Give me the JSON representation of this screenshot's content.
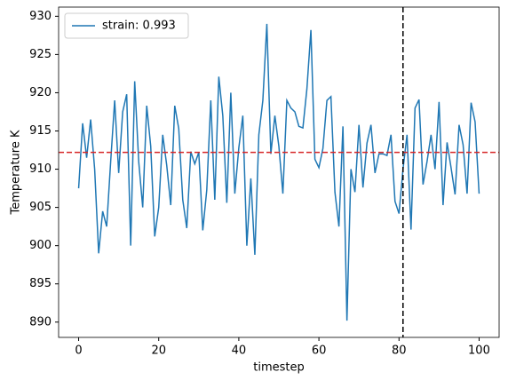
{
  "chart_data": {
    "type": "line",
    "x_label": "timestep",
    "y_label": "Temperature K",
    "x": [
      0,
      1,
      2,
      3,
      4,
      5,
      6,
      7,
      8,
      9,
      10,
      11,
      12,
      13,
      14,
      15,
      16,
      17,
      18,
      19,
      20,
      21,
      22,
      23,
      24,
      25,
      26,
      27,
      28,
      29,
      30,
      31,
      32,
      33,
      34,
      35,
      36,
      37,
      38,
      39,
      40,
      41,
      42,
      43,
      44,
      45,
      46,
      47,
      48,
      49,
      50,
      51,
      52,
      53,
      54,
      55,
      56,
      57,
      58,
      59,
      60,
      61,
      62,
      63,
      64,
      65,
      66,
      67,
      68,
      69,
      70,
      71,
      72,
      73,
      74,
      75,
      76,
      77,
      78,
      79,
      80,
      81,
      82,
      83,
      84,
      85,
      86,
      87,
      88,
      89,
      90,
      91,
      92,
      93,
      94,
      95,
      96,
      97,
      98,
      99,
      100
    ],
    "series": [
      {
        "name": "strain: 0.993",
        "color": "#1f77b4",
        "values": [
          907.5,
          916,
          911.5,
          916.5,
          910,
          899,
          904.5,
          902.5,
          911,
          919,
          909.5,
          917.5,
          919.8,
          900,
          921.5,
          911,
          905,
          918.3,
          913,
          901.2,
          905,
          914.5,
          910.5,
          905.3,
          918.3,
          915.3,
          906,
          902.3,
          912.3,
          910.7,
          912.2,
          902,
          907.3,
          919,
          906,
          922.1,
          917,
          905.6,
          920,
          906.8,
          912.8,
          917,
          900,
          908.8,
          898.8,
          914.5,
          919,
          929,
          912,
          917,
          913,
          906.8,
          919,
          918,
          917.5,
          915.6,
          915.4,
          920.5,
          928.2,
          911.3,
          910.2,
          912.7,
          919,
          919.5,
          907,
          902.5,
          915.6,
          890.2,
          910,
          907,
          915.8,
          907.6,
          913.4,
          915.8,
          909.5,
          912,
          912,
          911.8,
          914.5,
          905.8,
          904.2,
          910,
          914.5,
          902.1,
          918,
          919.1,
          908,
          911,
          914.5,
          910,
          918.8,
          905.3,
          913.5,
          910.2,
          906.7,
          915.8,
          913.2,
          906.8,
          918.7,
          916.2,
          906.8
        ]
      }
    ],
    "hlines": [
      {
        "y": 912.2,
        "color": "#d62728"
      }
    ],
    "vlines": [
      {
        "x": 81,
        "color": "#000000"
      }
    ],
    "xlim": [
      -5,
      105
    ],
    "ylim": [
      888,
      931.2
    ],
    "xticks": [
      0,
      20,
      40,
      60,
      80,
      100
    ],
    "yticks": [
      890,
      895,
      900,
      905,
      910,
      915,
      920,
      925,
      930
    ],
    "legend": "upper left",
    "grid": false
  }
}
